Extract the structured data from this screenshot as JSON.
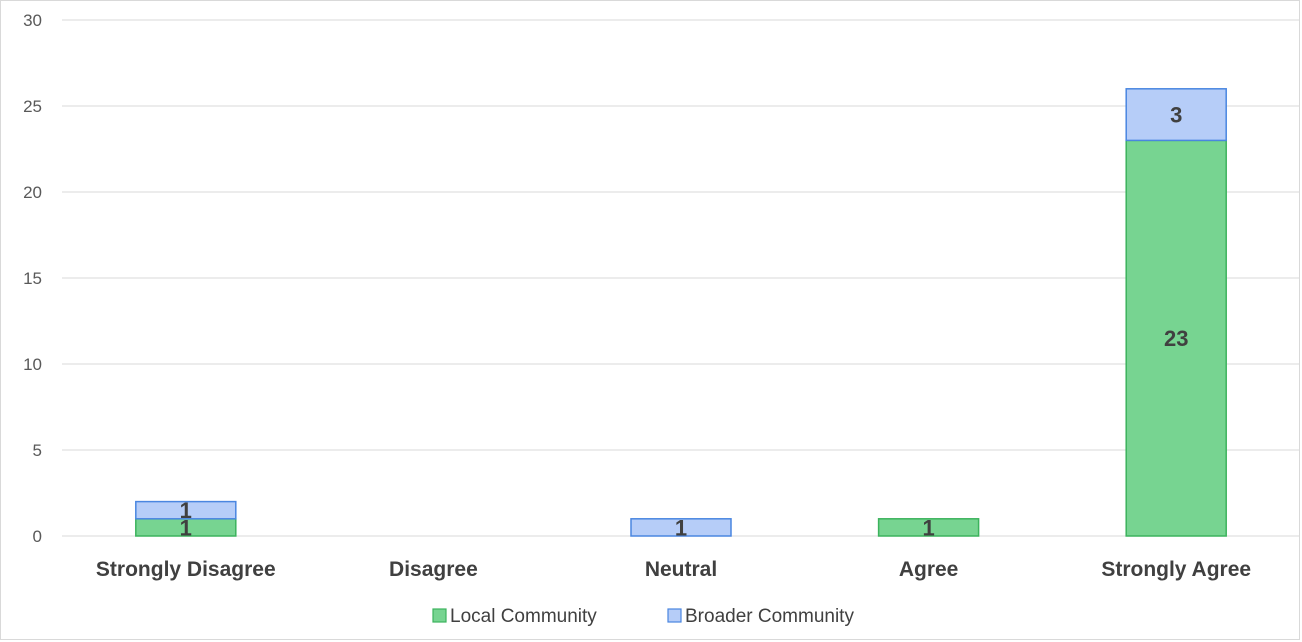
{
  "chart_data": {
    "type": "bar",
    "stacked": true,
    "categories": [
      "Strongly Disagree",
      "Disagree",
      "Neutral",
      "Agree",
      "Strongly Agree"
    ],
    "series": [
      {
        "name": "Local Community",
        "values": [
          1,
          0,
          0,
          1,
          23
        ],
        "color": "#77d491",
        "stroke": "#3cb35d"
      },
      {
        "name": "Broader Community",
        "values": [
          1,
          0,
          1,
          0,
          3
        ],
        "color": "#b6cdf8",
        "stroke": "#4a86e0"
      }
    ],
    "yticks": [
      0,
      5,
      10,
      15,
      20,
      25,
      30
    ],
    "ylim": [
      0,
      30
    ],
    "grid": true,
    "legend_position": "bottom",
    "gridline_color": "#d9d9d9"
  }
}
